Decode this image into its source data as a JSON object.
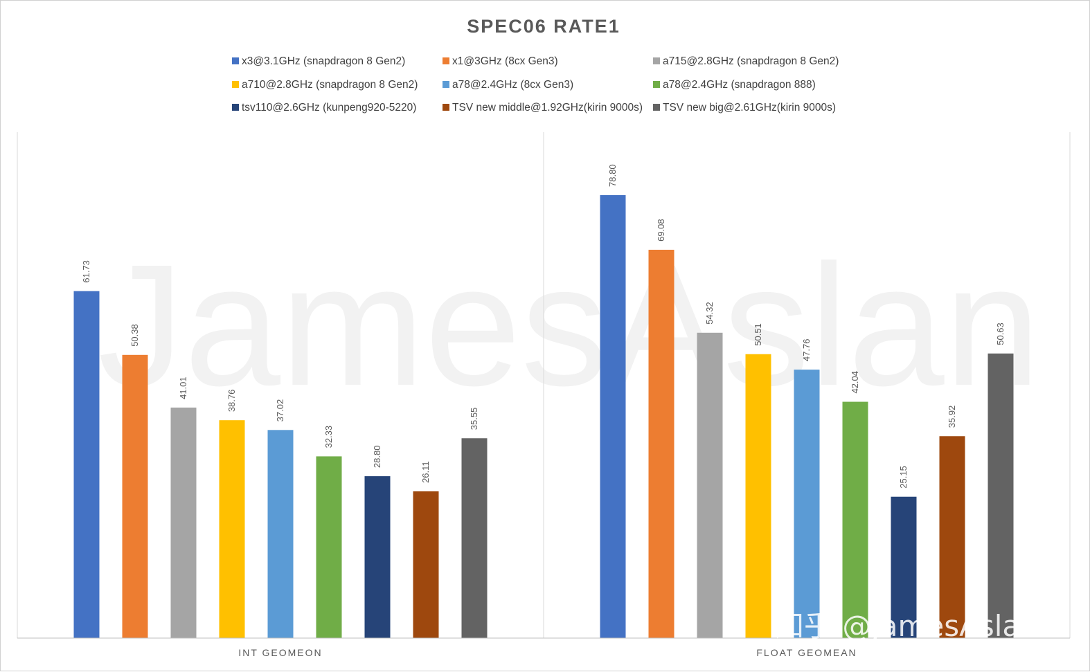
{
  "chart_data": {
    "type": "bar",
    "title": "SPEC06 RATE1",
    "categories": [
      "INT GEOMEON",
      "FLOAT GEOMEAN"
    ],
    "series": [
      {
        "name": "x3@3.1GHz (snapdragon 8 Gen2)",
        "color": "#4472C4",
        "values": [
          61.73,
          78.8
        ],
        "labels": [
          "61.73",
          "78.80"
        ]
      },
      {
        "name": "x1@3GHz (8cx Gen3)",
        "color": "#ED7D31",
        "values": [
          50.38,
          69.08
        ],
        "labels": [
          "50.38",
          "69.08"
        ]
      },
      {
        "name": "a715@2.8GHz (snapdragon 8 Gen2)",
        "color": "#A5A5A5",
        "values": [
          41.01,
          54.32
        ],
        "labels": [
          "41.01",
          "54.32"
        ]
      },
      {
        "name": "a710@2.8GHz (snapdragon 8 Gen2)",
        "color": "#FFC000",
        "values": [
          38.76,
          50.51
        ],
        "labels": [
          "38.76",
          "50.51"
        ]
      },
      {
        "name": "a78@2.4GHz (8cx Gen3)",
        "color": "#5B9BD5",
        "values": [
          37.02,
          47.76
        ],
        "labels": [
          "37.02",
          "47.76"
        ]
      },
      {
        "name": "a78@2.4GHz (snapdragon 888)",
        "color": "#70AD47",
        "values": [
          32.33,
          42.04
        ],
        "labels": [
          "32.33",
          "42.04"
        ]
      },
      {
        "name": "tsv110@2.6GHz (kunpeng920-5220)",
        "color": "#264478",
        "values": [
          28.8,
          25.15
        ],
        "labels": [
          "28.80",
          "25.15"
        ]
      },
      {
        "name": "TSV new middle@1.92GHz(kirin 9000s)",
        "color": "#9E480E",
        "values": [
          26.11,
          35.92
        ],
        "labels": [
          "26.11",
          "35.92"
        ]
      },
      {
        "name": "TSV new big@2.61GHz(kirin 9000s)",
        "color": "#636363",
        "values": [
          35.55,
          50.63
        ],
        "labels": [
          "35.55",
          "50.63"
        ]
      }
    ],
    "ylim": [
      0,
      90
    ],
    "grid": false,
    "legend_position": "top",
    "watermark": "JamesAslan",
    "credit": "知乎 @JamesAslan"
  }
}
